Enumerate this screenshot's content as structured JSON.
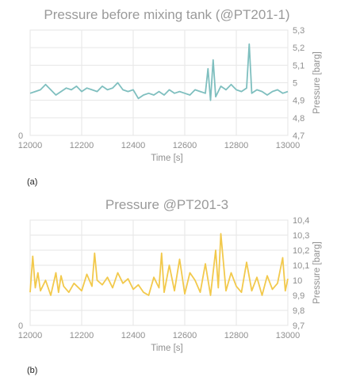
{
  "chart_data": [
    {
      "type": "line",
      "panel_label": "(a)",
      "title": "Pressure before mixing tank (@PT201-1)",
      "xlabel": "Time [s]",
      "ylabel": "Pressure [barg]",
      "xlim": [
        12000,
        13000
      ],
      "ylim": [
        4.7,
        5.3
      ],
      "x_ticks": [
        "12000",
        "12200",
        "12400",
        "12600",
        "12800",
        "13000"
      ],
      "y_ticks": [
        "4,7",
        "4,8",
        "4,9",
        "5",
        "5,1",
        "5,2",
        "5,3"
      ],
      "left_axis_label": "0",
      "grid": true,
      "color": "#7fbfbf",
      "series": [
        {
          "x": [
            12000,
            12020,
            12040,
            12060,
            12080,
            12100,
            12120,
            12140,
            12160,
            12180,
            12200,
            12220,
            12240,
            12260,
            12280,
            12300,
            12320,
            12340,
            12360,
            12380,
            12400,
            12420,
            12440,
            12460,
            12480,
            12500,
            12520,
            12540,
            12560,
            12580,
            12600,
            12620,
            12640,
            12660,
            12680,
            12690,
            12700,
            12710,
            12720,
            12740,
            12760,
            12780,
            12800,
            12820,
            12840,
            12850,
            12860,
            12880,
            12900,
            12920,
            12940,
            12960,
            12980,
            13000
          ],
          "values": [
            4.94,
            4.95,
            4.96,
            4.99,
            4.96,
            4.93,
            4.95,
            4.97,
            4.96,
            4.98,
            4.95,
            4.97,
            4.96,
            4.95,
            4.98,
            4.96,
            4.97,
            5.0,
            4.96,
            4.95,
            4.96,
            4.91,
            4.93,
            4.94,
            4.93,
            4.95,
            4.93,
            4.96,
            4.94,
            4.95,
            4.94,
            4.93,
            4.96,
            4.95,
            4.94,
            5.08,
            4.9,
            5.13,
            4.92,
            4.98,
            4.96,
            4.99,
            4.96,
            4.95,
            4.97,
            5.22,
            4.94,
            4.96,
            4.95,
            4.93,
            4.95,
            4.96,
            4.94,
            4.95
          ]
        }
      ]
    },
    {
      "type": "line",
      "panel_label": "(b)",
      "title": "Pressure @PT201-3",
      "xlabel": "Time [s]",
      "ylabel": "Pressure [barg]",
      "xlim": [
        12000,
        13000
      ],
      "ylim": [
        9.7,
        10.4
      ],
      "x_ticks": [
        "12000",
        "12200",
        "12400",
        "12600",
        "12800",
        "13000"
      ],
      "y_ticks": [
        "9,7",
        "9,8",
        "9,9",
        "10",
        "10,1",
        "10,2",
        "10,3",
        "10,4"
      ],
      "left_axis_label": "0",
      "grid": true,
      "color": "#f2c94c",
      "series": [
        {
          "x": [
            12000,
            12010,
            12020,
            12030,
            12040,
            12060,
            12080,
            12100,
            12110,
            12120,
            12130,
            12150,
            12170,
            12200,
            12220,
            12240,
            12250,
            12260,
            12280,
            12300,
            12320,
            12340,
            12360,
            12380,
            12400,
            12420,
            12440,
            12460,
            12480,
            12500,
            12510,
            12520,
            12540,
            12560,
            12580,
            12600,
            12620,
            12640,
            12660,
            12680,
            12700,
            12720,
            12730,
            12740,
            12760,
            12780,
            12800,
            12820,
            12840,
            12860,
            12880,
            12900,
            12920,
            12940,
            12960,
            12980,
            12990,
            13000
          ],
          "values": [
            9.92,
            10.16,
            9.95,
            10.05,
            9.93,
            10.0,
            9.9,
            10.05,
            9.92,
            10.03,
            9.96,
            9.92,
            9.98,
            9.93,
            10.04,
            9.96,
            10.18,
            10.0,
            9.97,
            10.02,
            9.95,
            10.05,
            9.98,
            10.01,
            9.94,
            9.97,
            9.92,
            9.9,
            10.02,
            9.95,
            10.18,
            9.92,
            10.1,
            9.93,
            10.14,
            9.91,
            10.05,
            10.0,
            9.92,
            10.11,
            9.9,
            10.2,
            9.95,
            10.31,
            9.93,
            10.05,
            9.96,
            9.92,
            10.12,
            9.93,
            10.02,
            9.9,
            10.03,
            9.94,
            9.98,
            10.15,
            9.93,
            10.01
          ]
        }
      ]
    }
  ]
}
